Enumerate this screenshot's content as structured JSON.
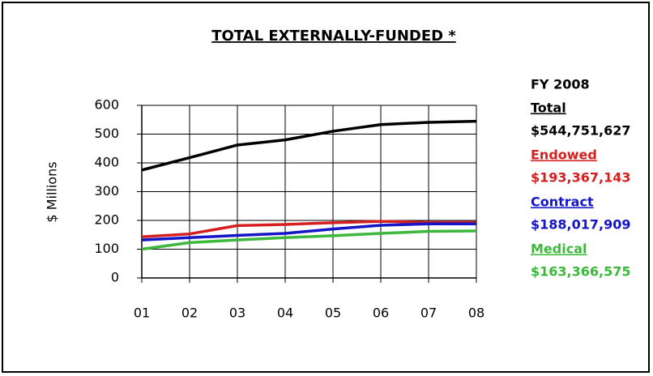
{
  "chart_data": {
    "type": "line",
    "title": "TOTAL EXTERNALLY-FUNDED *",
    "y_label": "$ Millions",
    "legend_title": "FY 2008",
    "categories": [
      "01",
      "02",
      "03",
      "04",
      "05",
      "06",
      "07",
      "08"
    ],
    "series": [
      {
        "name": "Total",
        "color": "#000000",
        "values": [
          375,
          418,
          462,
          480,
          510,
          533,
          541,
          544.751627
        ],
        "value_labels": [
          null,
          null,
          null,
          null,
          null,
          null,
          null,
          "$544,751,627"
        ]
      },
      {
        "name": "Endowed",
        "color": "#d42020",
        "values": [
          143,
          153,
          182,
          186,
          192,
          197,
          193,
          193.367143
        ],
        "value_labels": [
          null,
          null,
          null,
          null,
          null,
          null,
          null,
          "$193,367,143"
        ]
      },
      {
        "name": "Contract",
        "color": "#1515c8",
        "values": [
          132,
          140,
          148,
          155,
          170,
          183,
          188,
          188.017909
        ],
        "value_labels": [
          null,
          null,
          null,
          null,
          null,
          null,
          null,
          "$188,017,909"
        ]
      },
      {
        "name": "Medical",
        "color": "#3cb83c",
        "values": [
          100,
          123,
          132,
          140,
          147,
          155,
          162,
          163.366575
        ],
        "value_labels": [
          null,
          null,
          null,
          null,
          null,
          null,
          null,
          "$163,366,575"
        ]
      }
    ],
    "ylim": [
      0,
      600
    ],
    "yticks": [
      0,
      100,
      200,
      300,
      400,
      500,
      600
    ],
    "grid": true
  }
}
